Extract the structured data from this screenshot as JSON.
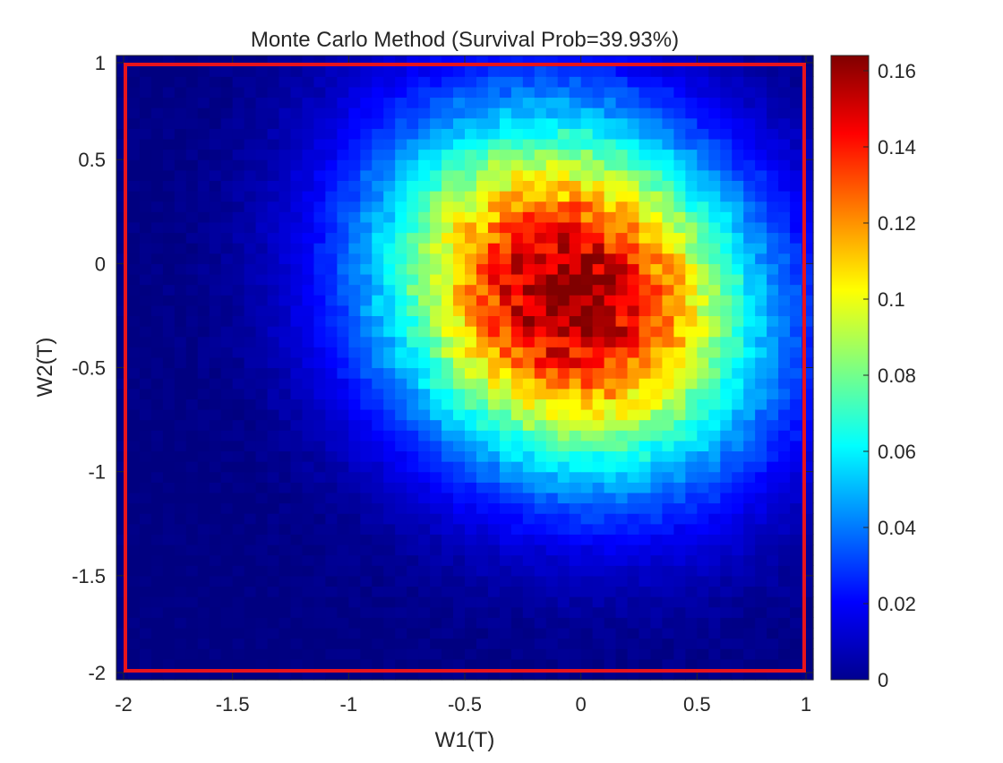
{
  "chart_data": {
    "type": "heatmap",
    "title": "Monte Carlo Method (Survival Prob=39.93%)",
    "xlabel": "W1(T)",
    "ylabel": "W2(T)",
    "xlim": [
      -2,
      1
    ],
    "ylim": [
      -2,
      1
    ],
    "x_ticks": [
      -2,
      -1.5,
      -1,
      -0.5,
      0,
      0.5,
      1
    ],
    "y_ticks": [
      -2,
      -1.5,
      -1,
      -0.5,
      0,
      0.5,
      1
    ],
    "x_tick_labels": [
      "-2",
      "-1.5",
      "-1",
      "-0.5",
      "0",
      "0.5",
      "1"
    ],
    "y_tick_labels": [
      "-2",
      "-1.5",
      "-1",
      "-0.5",
      "0",
      "0.5",
      "1"
    ],
    "grid": false,
    "colormap": "jet",
    "color_limits": [
      0,
      0.164
    ],
    "colorbar_ticks": [
      0,
      0.02,
      0.04,
      0.06,
      0.08,
      0.1,
      0.12,
      0.14,
      0.16
    ],
    "colorbar_tick_labels": [
      "0",
      "0.02",
      "0.04",
      "0.06",
      "0.08",
      "0.1",
      "0.12",
      "0.14",
      "0.16"
    ],
    "grid_bins": 60,
    "density_peak": {
      "w1": -0.05,
      "w2": -0.15,
      "value": 0.164
    },
    "density_shape": {
      "std_w1": 0.55,
      "std_w2": 0.58,
      "correlation": -0.15
    },
    "boundary_box": {
      "color": "#e8141c",
      "w1_range": [
        -2,
        1
      ],
      "w2_range": [
        -2,
        1
      ]
    }
  }
}
